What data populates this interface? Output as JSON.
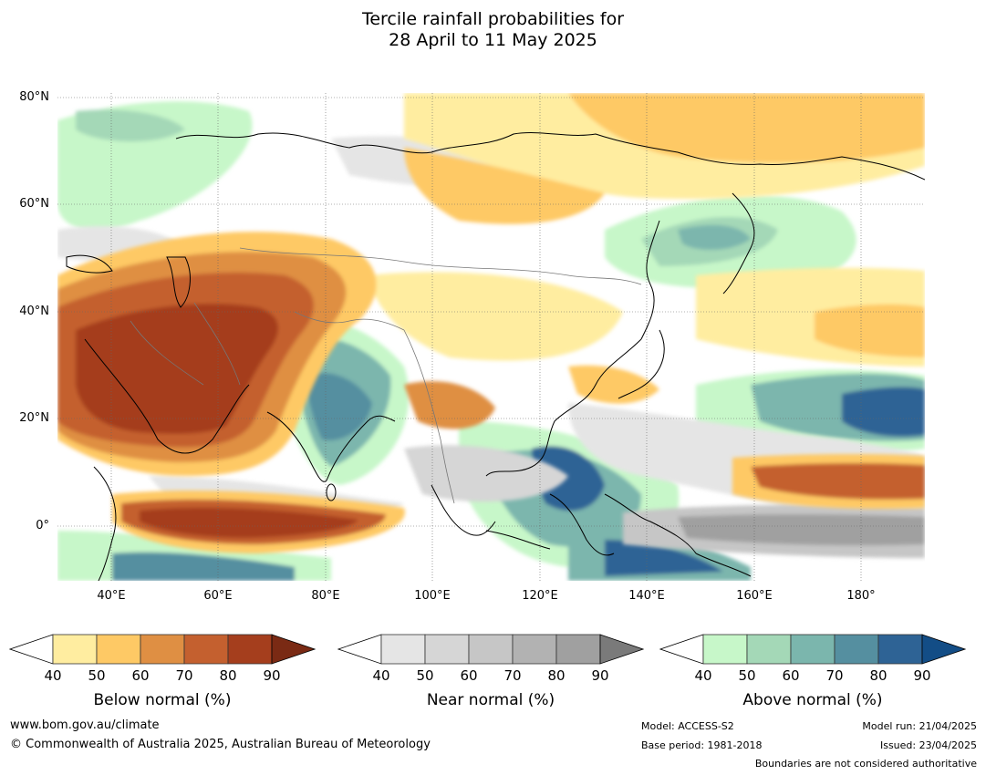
{
  "title": {
    "line1": "Tercile rainfall probabilities for",
    "line2": "28 April to 11 May 2025"
  },
  "map": {
    "lat_labels": [
      "80°N",
      "60°N",
      "40°N",
      "20°N",
      "0°"
    ],
    "lon_labels": [
      "40°E",
      "60°E",
      "80°E",
      "100°E",
      "120°E",
      "140°E",
      "160°E",
      "180°"
    ],
    "palette": {
      "below": [
        "#ffeda0",
        "#fec965",
        "#df8f43",
        "#c4602f",
        "#a53e1d",
        "#7a2a14"
      ],
      "near": [
        "#e5e5e5",
        "#d6d6d6",
        "#c6c6c6",
        "#b2b2b2",
        "#a0a0a0",
        "#7a7a7a"
      ],
      "above": [
        "#c7f7c9",
        "#a4d8b7",
        "#7bb6ad",
        "#558fa0",
        "#2e6395",
        "#134d86"
      ]
    }
  },
  "colorbars": [
    {
      "id": "below",
      "title": "Below normal (%)",
      "ticks": [
        "40",
        "50",
        "60",
        "70",
        "80",
        "90"
      ],
      "colors": [
        "#ffeda0",
        "#fec965",
        "#df8f43",
        "#c4602f",
        "#a53e1d",
        "#7a2a14"
      ]
    },
    {
      "id": "near",
      "title": "Near normal (%)",
      "ticks": [
        "40",
        "50",
        "60",
        "70",
        "80",
        "90"
      ],
      "colors": [
        "#e5e5e5",
        "#d6d6d6",
        "#c6c6c6",
        "#b2b2b2",
        "#a0a0a0",
        "#7a7a7a"
      ]
    },
    {
      "id": "above",
      "title": "Above normal (%)",
      "ticks": [
        "40",
        "50",
        "60",
        "70",
        "80",
        "90"
      ],
      "colors": [
        "#c7f7c9",
        "#a4d8b7",
        "#7bb6ad",
        "#558fa0",
        "#2e6395",
        "#134d86"
      ]
    }
  ],
  "footer": {
    "website": "www.bom.gov.au/climate",
    "copyright": "© Commonwealth of Australia 2025, Australian Bureau of Meteorology",
    "model": "Model: ACCESS-S2",
    "base_period": "Base period: 1981-2018",
    "model_run": "Model run: 21/04/2025",
    "issued": "Issued: 23/04/2025",
    "disclaimer": "Boundaries are not considered authoritative"
  }
}
